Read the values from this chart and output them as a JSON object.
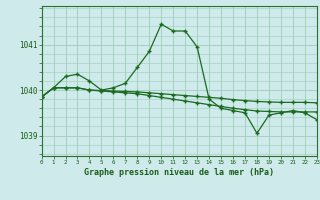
{
  "title": "Graphe pression niveau de la mer (hPa)",
  "bg_color": "#ceeaea",
  "grid_color": "#a0ccbb",
  "line_color": "#1a6b20",
  "marker": "+",
  "x": [
    0,
    1,
    2,
    3,
    4,
    5,
    6,
    7,
    8,
    9,
    10,
    11,
    12,
    13,
    14,
    15,
    16,
    17,
    18,
    19,
    20,
    21,
    22,
    23
  ],
  "series1": [
    1039.85,
    1040.05,
    1040.3,
    1040.35,
    1040.2,
    1040.0,
    1040.05,
    1040.15,
    1040.5,
    1040.85,
    1041.45,
    1041.3,
    1041.3,
    1040.95,
    1039.8,
    1039.6,
    1039.55,
    1039.5,
    1039.05,
    1039.45,
    1039.5,
    1039.55,
    1039.5,
    1039.35
  ],
  "series2": [
    1039.85,
    1040.05,
    1040.05,
    1040.05,
    1040.0,
    1039.98,
    1039.96,
    1039.94,
    1039.92,
    1039.88,
    1039.84,
    1039.8,
    1039.76,
    1039.72,
    1039.68,
    1039.64,
    1039.6,
    1039.57,
    1039.54,
    1039.53,
    1039.52,
    1039.52,
    1039.52,
    1039.52
  ],
  "series3": [
    1039.85,
    1040.05,
    1040.05,
    1040.05,
    1040.0,
    1039.99,
    1039.98,
    1039.97,
    1039.96,
    1039.94,
    1039.92,
    1039.9,
    1039.88,
    1039.86,
    1039.84,
    1039.82,
    1039.79,
    1039.77,
    1039.75,
    1039.74,
    1039.73,
    1039.73,
    1039.73,
    1039.72
  ],
  "yticks": [
    1039,
    1040,
    1041
  ],
  "ylim": [
    1038.55,
    1041.85
  ],
  "xlim": [
    0,
    23
  ]
}
